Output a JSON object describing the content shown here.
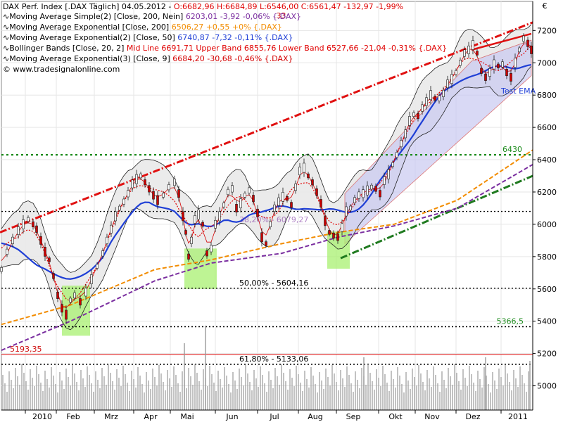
{
  "colors": {
    "price_up": "#1a1a1a",
    "price_down": "#cc0000",
    "sma200": "#7b2fa0",
    "ema200": "#f28c00",
    "ema50": "#1f3fd6",
    "boll_mid": "#e00000",
    "boll_band": "#222222",
    "boll_fill": "#e8e8e8",
    "ema9": "#d40000",
    "trend_red": "#e01010",
    "trend_green": "#1f7a1f",
    "level_green": "#1a8a1a",
    "channel_fill": "#c9c9f2",
    "highlight_green": "#a8f070",
    "volume": "#9a9a9a",
    "grid": "#e6e6e6"
  },
  "legend": [
    {
      "name": "DAX Perf. Index [.DAX  Täglich]",
      "date": "04.05.2012",
      "values": "O:6682,96 H:6684,89 L:6546,00 C:6561,47 -132,97 -1,99%",
      "color": "#e00000"
    },
    {
      "name": "Moving Average Simple(2) [Close, 200, Nein]",
      "values": "6203,01 -3,92 -0,06% {.DAX}",
      "color": "#7b2fa0"
    },
    {
      "name": "Moving Average Exponential [Close, 200]",
      "values": "6506,27 +0,55 +0% {.DAX}",
      "color": "#f28c00"
    },
    {
      "name": "Moving Average Exponential(2) [Close, 50]",
      "values": "6740,87 -7,32 -0,11% {.DAX}",
      "color": "#1f3fd6"
    },
    {
      "name": "Bollinger Bands [Close, 20, 2]",
      "values": "Mid Line 6691,71 Upper Band 6855,76 Lower Band 6527,66 -21,04 -0,31% {.DAX}",
      "color": "#e00000"
    },
    {
      "name": "Moving Average Exponential(3) [Close, 9]",
      "values": "6684,20 -30,68 -0,46% {.DAX}",
      "color": "#d40000"
    }
  ],
  "watermark": "© www.tradesignalonline.com",
  "chart_data": {
    "type": "line",
    "title": "DAX Perf. Index [.DAX  Täglich]",
    "ylim": [
      4850,
      7380
    ],
    "y_ticks": [
      5000,
      5200,
      5400,
      5600,
      5800,
      6000,
      6200,
      6400,
      6600,
      6800,
      7000,
      7200
    ],
    "y_unit": "€",
    "x_months": [
      "2010",
      "Feb",
      "Mrz",
      "Apr",
      "Mai",
      "Jun",
      "Jul",
      "Aug",
      "Sep",
      "Okt",
      "Nov",
      "Dez",
      "2011"
    ],
    "levels": [
      {
        "label": "6430",
        "value": 6430,
        "style": "green-dotted"
      },
      {
        "label": "",
        "value": 6080,
        "style": "black-dotted"
      },
      {
        "label": "50,00% - 5604,16",
        "value": 5604,
        "style": "black-dotted"
      },
      {
        "label": "5366,5",
        "value": 5366,
        "style": "black-dotted"
      },
      {
        "label": "5193,35",
        "value": 5193,
        "style": "red-solid"
      },
      {
        "label": "61,80% - 5133,06",
        "value": 5133,
        "style": "black-dotted"
      }
    ],
    "annotations": [
      "Test EMA",
      ".33",
      "38,20% - 6079,27"
    ],
    "series": [
      {
        "name": "DAX",
        "x": [
          0,
          8,
          16,
          24,
          31,
          38,
          45,
          50,
          56,
          62,
          68,
          74,
          80,
          86,
          92,
          98,
          104,
          112,
          120,
          128,
          136,
          144,
          150,
          156,
          162,
          168,
          174,
          180,
          186,
          192,
          198,
          204,
          210,
          216,
          222,
          230,
          238,
          246,
          252,
          258,
          262,
          266,
          270,
          275,
          280,
          286,
          292,
          298,
          304,
          310,
          316,
          322,
          328,
          334,
          340,
          346,
          352,
          358,
          364,
          370,
          376,
          382,
          388,
          394,
          400,
          406,
          412,
          418,
          424,
          430,
          436,
          442,
          448,
          454,
          460,
          466,
          472,
          478,
          484,
          490,
          496,
          502,
          508,
          514,
          520,
          526,
          532,
          538,
          544,
          550,
          556,
          562,
          568,
          574,
          580,
          586,
          592,
          598,
          604,
          610,
          616,
          622,
          628,
          634,
          640,
          646,
          652,
          658,
          664,
          670,
          676,
          682,
          688,
          694,
          700,
          706,
          712,
          718,
          724,
          730,
          736,
          742,
          748,
          753
        ],
        "values": [
          5720,
          5830,
          5900,
          5960,
          6000,
          6030,
          6000,
          5970,
          5900,
          5830,
          5780,
          5680,
          5560,
          5480,
          5440,
          5530,
          5560,
          5520,
          5580,
          5660,
          5740,
          5820,
          5900,
          5970,
          6050,
          6100,
          6140,
          6190,
          6250,
          6280,
          6300,
          6260,
          6220,
          6180,
          6150,
          6180,
          6230,
          6260,
          6190,
          6050,
          5950,
          5800,
          5900,
          6030,
          6060,
          6000,
          5820,
          5850,
          6000,
          6050,
          6120,
          6200,
          6220,
          6100,
          6130,
          6180,
          6210,
          6160,
          6070,
          5920,
          5880,
          6000,
          6100,
          6140,
          6170,
          6160,
          6120,
          6230,
          6330,
          6350,
          6300,
          6260,
          6200,
          6130,
          6020,
          5950,
          5930,
          5920,
          5980,
          6080,
          6100,
          6150,
          6180,
          6190,
          6210,
          6230,
          6220,
          6190,
          6270,
          6310,
          6370,
          6430,
          6500,
          6560,
          6640,
          6680,
          6670,
          6720,
          6760,
          6800,
          6780,
          6780,
          6810,
          6870,
          6900,
          6940,
          7000,
          7060,
          7080,
          7110,
          7060,
          6950,
          6910,
          6940,
          6990,
          6980,
          6990,
          6940,
          6910,
          7000,
          7080,
          7150,
          7120,
          7080
        ]
      }
    ]
  }
}
